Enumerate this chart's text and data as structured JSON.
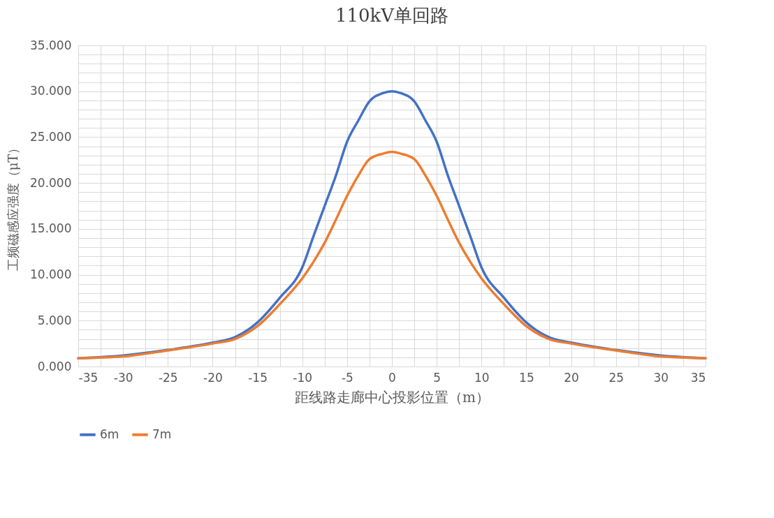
{
  "chart_data": {
    "type": "line",
    "title": "110kV单回路",
    "xlabel": "距线路走廊中心投影位置（m）",
    "ylabel": "工频磁感应强度（μT）",
    "x": [
      -35,
      -30,
      -25,
      -20,
      -17.5,
      -15,
      -12.5,
      -10,
      -8.75,
      -7.5,
      -6.25,
      -5,
      -3.75,
      -2.5,
      -1,
      0,
      1,
      2.5,
      3.75,
      5,
      6.25,
      7.5,
      8.75,
      10,
      12.5,
      15,
      17.5,
      20,
      25,
      30,
      35
    ],
    "series": [
      {
        "name": "6m",
        "color": "#4472c4",
        "values": [
          0.9,
          1.2,
          1.8,
          2.6,
          3.2,
          4.8,
          7.5,
          10.8,
          14.2,
          17.5,
          20.8,
          24.5,
          26.8,
          28.9,
          29.8,
          30.0,
          29.8,
          28.9,
          26.8,
          24.5,
          20.8,
          17.5,
          14.2,
          10.8,
          7.5,
          4.8,
          3.2,
          2.6,
          1.8,
          1.2,
          0.9
        ]
      },
      {
        "name": "7m",
        "color": "#ed7d31",
        "values": [
          0.9,
          1.1,
          1.75,
          2.5,
          3.0,
          4.4,
          6.8,
          9.6,
          11.4,
          13.5,
          16.0,
          18.6,
          20.8,
          22.6,
          23.2,
          23.4,
          23.2,
          22.6,
          20.8,
          18.6,
          16.0,
          13.5,
          11.4,
          9.6,
          6.8,
          4.4,
          3.0,
          2.5,
          1.75,
          1.1,
          0.9
        ]
      }
    ],
    "xlim": [
      -35,
      35
    ],
    "xticks": [
      -35,
      {
        "value": -32.5,
        "label": null
      },
      -30,
      {
        "value": -27.5,
        "label": null
      },
      -25,
      {
        "value": -22.5,
        "label": null
      },
      -20,
      {
        "value": -17.5,
        "label": null
      },
      -15,
      {
        "value": -12.5,
        "label": null
      },
      -10,
      {
        "value": -7.5,
        "label": null
      },
      -5,
      {
        "value": -2.5,
        "label": null
      },
      0,
      {
        "value": 2.5,
        "label": null
      },
      5,
      {
        "value": 7.5,
        "label": null
      },
      10,
      {
        "value": 12.5,
        "label": null
      },
      15,
      {
        "value": 17.5,
        "label": null
      },
      20,
      {
        "value": 22.5,
        "label": null
      },
      25,
      {
        "value": 27.5,
        "label": null
      },
      30,
      {
        "value": 32.5,
        "label": null
      },
      35
    ],
    "ylim": [
      0,
      35
    ],
    "yticks": [
      {
        "value": 0,
        "label": "0.000"
      },
      {
        "value": 1,
        "label": null
      },
      {
        "value": 2,
        "label": null
      },
      {
        "value": 3,
        "label": null
      },
      {
        "value": 4,
        "label": null
      },
      {
        "value": 5,
        "label": "5.000"
      },
      {
        "value": 6,
        "label": null
      },
      {
        "value": 7,
        "label": null
      },
      {
        "value": 8,
        "label": null
      },
      {
        "value": 9,
        "label": null
      },
      {
        "value": 10,
        "label": "10.000"
      },
      {
        "value": 11,
        "label": null
      },
      {
        "value": 12,
        "label": null
      },
      {
        "value": 13,
        "label": null
      },
      {
        "value": 14,
        "label": null
      },
      {
        "value": 15,
        "label": "15.000"
      },
      {
        "value": 16,
        "label": null
      },
      {
        "value": 17,
        "label": null
      },
      {
        "value": 18,
        "label": null
      },
      {
        "value": 19,
        "label": null
      },
      {
        "value": 20,
        "label": "20.000"
      },
      {
        "value": 21,
        "label": null
      },
      {
        "value": 22,
        "label": null
      },
      {
        "value": 23,
        "label": null
      },
      {
        "value": 24,
        "label": null
      },
      {
        "value": 25,
        "label": "25.000"
      },
      {
        "value": 26,
        "label": null
      },
      {
        "value": 27,
        "label": null
      },
      {
        "value": 28,
        "label": null
      },
      {
        "value": 29,
        "label": null
      },
      {
        "value": 30,
        "label": "30.000"
      },
      {
        "value": 31,
        "label": null
      },
      {
        "value": 32,
        "label": null
      },
      {
        "value": 33,
        "label": null
      },
      {
        "value": 34,
        "label": null
      },
      {
        "value": 35,
        "label": "35.000"
      }
    ],
    "grid": true,
    "legend": "bottom",
    "marker": "none",
    "line_style": "solid"
  }
}
